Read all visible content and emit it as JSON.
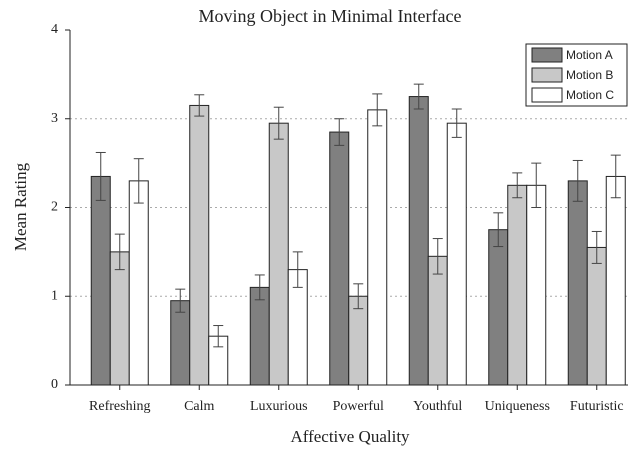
{
  "chart_data": {
    "type": "bar",
    "title": "Moving Object in Minimal Interface",
    "xlabel": "Affective Quality",
    "ylabel": "Mean Rating",
    "categories": [
      "Refreshing",
      "Calm",
      "Luxurious",
      "Powerful",
      "Youthful",
      "Uniqueness",
      "Futuristic"
    ],
    "series": [
      {
        "name": "Motion A",
        "color": "#808080",
        "values": [
          2.35,
          0.95,
          1.1,
          2.85,
          3.25,
          1.75,
          2.3
        ],
        "errors": [
          0.27,
          0.13,
          0.14,
          0.15,
          0.14,
          0.19,
          0.23
        ]
      },
      {
        "name": "Motion B",
        "color": "#c8c8c8",
        "values": [
          1.5,
          3.15,
          2.95,
          1.0,
          1.45,
          2.25,
          1.55
        ],
        "errors": [
          0.2,
          0.12,
          0.18,
          0.14,
          0.2,
          0.14,
          0.18
        ]
      },
      {
        "name": "Motion C",
        "color": "#ffffff",
        "values": [
          2.3,
          0.55,
          1.3,
          3.1,
          2.95,
          2.25,
          2.35
        ],
        "errors": [
          0.25,
          0.12,
          0.2,
          0.18,
          0.16,
          0.25,
          0.24
        ]
      }
    ],
    "ylim": [
      0,
      4
    ],
    "yticks": [
      0,
      1,
      2,
      3,
      4
    ],
    "grid": true,
    "legend": "upper right"
  }
}
